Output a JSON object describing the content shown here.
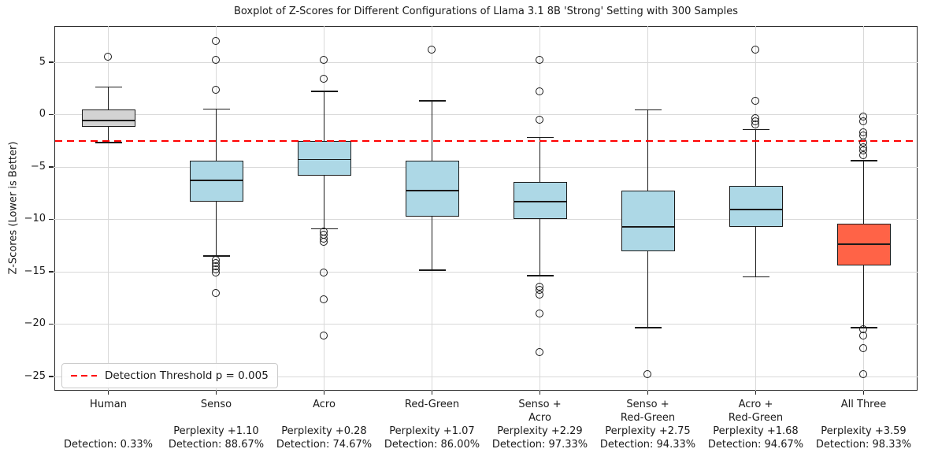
{
  "title": "Boxplot of Z-Scores for Different Configurations of Llama 3.1 8B 'Strong' Setting with 300 Samples",
  "y_axis_label": "Z-Scores (Lower is Better)",
  "legend": {
    "label": "Detection Threshold p = 0.005"
  },
  "colors": {
    "box_default": "#ADD8E6",
    "box_human": "#D3D3D3",
    "box_all_three": "#FF6347",
    "threshold_line": "#FF0000",
    "grid": "#D9D9D9",
    "spine": "#262626",
    "text": "#1A1A1A"
  },
  "chart_data": {
    "type": "boxplot",
    "title": "Boxplot of Z-Scores for Different Configurations of Llama 3.1 8B 'Strong' Setting with 300 Samples",
    "ylabel": "Z-Scores (Lower is Better)",
    "xlabel": "",
    "ylim": [
      -26.4,
      8.4
    ],
    "y_ticks": [
      5,
      0,
      -5,
      -10,
      -15,
      -20,
      -25
    ],
    "grid": true,
    "legend_position": "lower left",
    "threshold_line": {
      "y": -2.5,
      "style": "dashed",
      "color": "#FF0000",
      "label": "Detection Threshold p = 0.005"
    },
    "categories": [
      "Human",
      "Senso",
      "Acro",
      "Red-Green",
      "Senso + Acro",
      "Senso + Red-Green",
      "Acro + Red-Green",
      "All Three"
    ],
    "boxes": [
      {
        "name_lines": [
          "Human"
        ],
        "perplexity": "",
        "detection": "Detection: 0.33%",
        "fill": "#D3D3D3",
        "whisker_low": -2.7,
        "q1": -1.2,
        "median": -0.55,
        "q3": 0.5,
        "whisker_high": 2.6,
        "outliers": [
          5.5
        ]
      },
      {
        "name_lines": [
          "Senso"
        ],
        "perplexity": "Perplexity +1.10",
        "detection": "Detection: 88.67%",
        "fill": "#ADD8E6",
        "whisker_low": -13.5,
        "q1": -8.3,
        "median": -6.3,
        "q3": -4.45,
        "whisker_high": 0.5,
        "outliers": [
          7.0,
          5.2,
          2.3,
          -13.9,
          -14.2,
          -14.5,
          -14.8,
          -15.1,
          -17.1
        ]
      },
      {
        "name_lines": [
          "Acro"
        ],
        "perplexity": "Perplexity +0.28",
        "detection": "Detection: 74.67%",
        "fill": "#ADD8E6",
        "whisker_low": -10.9,
        "q1": -5.85,
        "median": -4.3,
        "q3": -2.5,
        "whisker_high": 2.2,
        "outliers": [
          5.2,
          3.4,
          -11.2,
          -11.5,
          -11.9,
          -12.2,
          -15.1,
          -17.7,
          -21.1
        ]
      },
      {
        "name_lines": [
          "Red-Green"
        ],
        "perplexity": "Perplexity +1.07",
        "detection": "Detection: 86.00%",
        "fill": "#ADD8E6",
        "whisker_low": -14.85,
        "q1": -9.75,
        "median": -7.3,
        "q3": -4.45,
        "whisker_high": 1.3,
        "outliers": [
          6.15
        ]
      },
      {
        "name_lines": [
          "Senso +",
          "Acro"
        ],
        "perplexity": "Perplexity +2.29",
        "detection": "Detection: 97.33%",
        "fill": "#ADD8E6",
        "whisker_low": -15.4,
        "q1": -10.0,
        "median": -8.3,
        "q3": -6.45,
        "whisker_high": -2.2,
        "outliers": [
          5.2,
          2.15,
          -0.5,
          -16.5,
          -16.8,
          -17.2,
          -19.0,
          -22.7
        ]
      },
      {
        "name_lines": [
          "Senso +",
          "Red-Green"
        ],
        "perplexity": "Perplexity +2.75",
        "detection": "Detection: 94.33%",
        "fill": "#ADD8E6",
        "whisker_low": -20.35,
        "q1": -13.05,
        "median": -10.75,
        "q3": -7.25,
        "whisker_high": 0.45,
        "outliers": [
          -24.85
        ]
      },
      {
        "name_lines": [
          "Acro +",
          "Red-Green"
        ],
        "perplexity": "Perplexity +1.68",
        "detection": "Detection: 94.67%",
        "fill": "#ADD8E6",
        "whisker_low": -15.5,
        "q1": -10.7,
        "median": -9.1,
        "q3": -6.8,
        "whisker_high": -1.45,
        "outliers": [
          6.15,
          1.3,
          -0.35,
          -0.65,
          -0.95
        ]
      },
      {
        "name_lines": [
          "All Three"
        ],
        "perplexity": "Perplexity +3.59",
        "detection": "Detection: 98.33%",
        "fill": "#FF6347",
        "whisker_low": -20.35,
        "q1": -14.45,
        "median": -12.4,
        "q3": -10.45,
        "whisker_high": -4.4,
        "outliers": [
          -0.25,
          -0.7,
          -1.7,
          -2.0,
          -2.75,
          -3.2,
          -3.5,
          -3.9,
          -20.5,
          -21.1,
          -22.35,
          -24.8
        ]
      }
    ]
  }
}
